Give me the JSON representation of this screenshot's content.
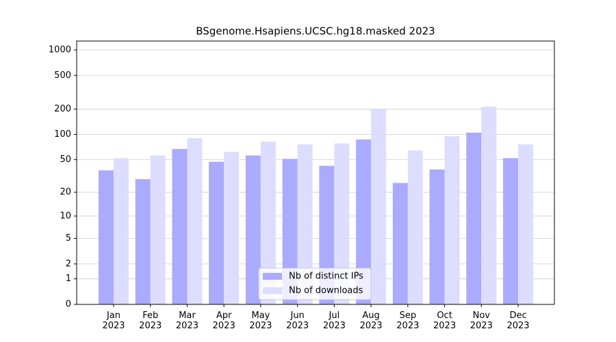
{
  "chart_data": {
    "type": "bar",
    "title": "BSgenome.Hsapiens.UCSC.hg18.masked 2023",
    "categories": [
      "Jan\n2023",
      "Feb\n2023",
      "Mar\n2023",
      "Apr\n2023",
      "May\n2023",
      "Jun\n2023",
      "Jul\n2023",
      "Aug\n2023",
      "Sep\n2023",
      "Oct\n2023",
      "Nov\n2023",
      "Dec\n2023"
    ],
    "series": [
      {
        "name": "Nb of distinct IPs",
        "color": "#aaaaff",
        "values": [
          37,
          29,
          67,
          47,
          56,
          51,
          42,
          87,
          26,
          38,
          105,
          52
        ]
      },
      {
        "name": "Nb of downloads",
        "color": "#ddddff",
        "values": [
          52,
          56,
          90,
          62,
          82,
          76,
          78,
          200,
          64,
          95,
          213,
          76
        ]
      }
    ],
    "yscale": "log1p",
    "ylim": [
      0,
      1273
    ],
    "yticks": [
      0,
      1,
      2,
      5,
      10,
      20,
      50,
      100,
      200,
      500,
      1000
    ],
    "grid": true,
    "legend": "lower center"
  }
}
